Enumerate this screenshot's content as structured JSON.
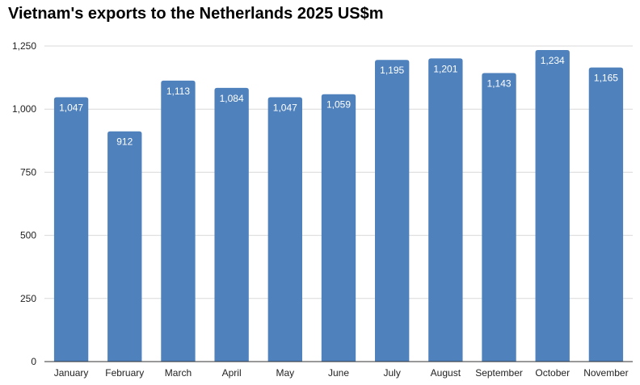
{
  "chart_data": {
    "type": "bar",
    "title": "Vietnam's exports to the Netherlands 2025 US$m",
    "categories": [
      "January",
      "February",
      "March",
      "April",
      "May",
      "June",
      "July",
      "August",
      "September",
      "October",
      "November"
    ],
    "values": [
      1047,
      912,
      1113,
      1084,
      1047,
      1059,
      1195,
      1201,
      1143,
      1234,
      1165
    ],
    "data_labels": [
      "1,047",
      "912",
      "1,113",
      "1,084",
      "1,047",
      "1,059",
      "1,195",
      "1,201",
      "1,143",
      "1,234",
      "1,165"
    ],
    "yticks": [
      0,
      250,
      500,
      750,
      1000,
      1250
    ],
    "ytick_labels": [
      "0",
      "250",
      "500",
      "750",
      "1,000",
      "1,250"
    ],
    "ylim": [
      0,
      1250
    ],
    "xlabel": "",
    "ylabel": "",
    "grid": true,
    "legend": "none",
    "bar_color": "#4f81bd",
    "grid_color": "#d9d9d9",
    "axis_color": "#333333"
  }
}
